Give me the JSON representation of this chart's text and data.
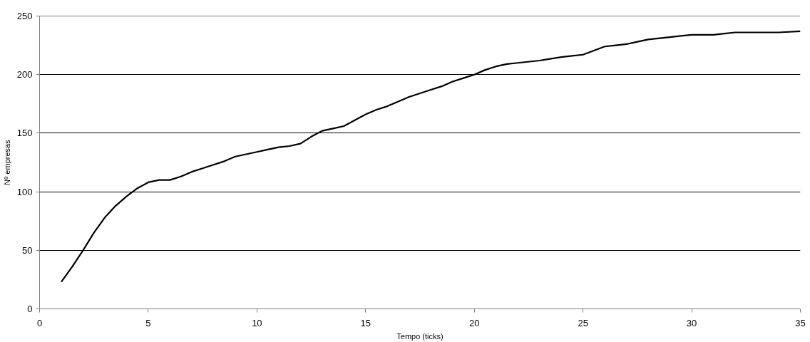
{
  "chart_data": {
    "type": "line",
    "xlabel": "Tempo (ticks)",
    "ylabel": "Nº empresas",
    "x": [
      1,
      1.5,
      2,
      2.5,
      3,
      3.5,
      4,
      4.5,
      5,
      5.5,
      6,
      6.5,
      7,
      7.5,
      8,
      8.5,
      9,
      9.5,
      10,
      10.5,
      11,
      11.5,
      12,
      12.5,
      13,
      13.5,
      14,
      14.5,
      15,
      15.5,
      16,
      16.5,
      17,
      17.5,
      18,
      18.5,
      19,
      19.5,
      20,
      20.5,
      21,
      21.5,
      22,
      23,
      24,
      24.5,
      25,
      26,
      26.5,
      27,
      27.5,
      28,
      29,
      29.5,
      30,
      31,
      32,
      33,
      34,
      35
    ],
    "series": [
      {
        "color": "#000000",
        "values": [
          23,
          36,
          50,
          65,
          78,
          88,
          96,
          103,
          108,
          110,
          110,
          113,
          117,
          120,
          123,
          126,
          130,
          132,
          134,
          136,
          138,
          139,
          141,
          147,
          152,
          154,
          156,
          161,
          166,
          170,
          173,
          177,
          181,
          184,
          187,
          190,
          194,
          197,
          200,
          204,
          207,
          209,
          210,
          212,
          215,
          216,
          217,
          224,
          225,
          226,
          228,
          230,
          232,
          233,
          234,
          234,
          236,
          236,
          236,
          237
        ]
      }
    ],
    "xlim": [
      0,
      35
    ],
    "ylim": [
      0,
      250
    ],
    "xticks": [
      0,
      5,
      10,
      15,
      20,
      25,
      30,
      35
    ],
    "yticks": [
      0,
      50,
      100,
      150,
      200,
      250
    ],
    "grid": "y",
    "marker": "none",
    "line_style": "solid"
  }
}
